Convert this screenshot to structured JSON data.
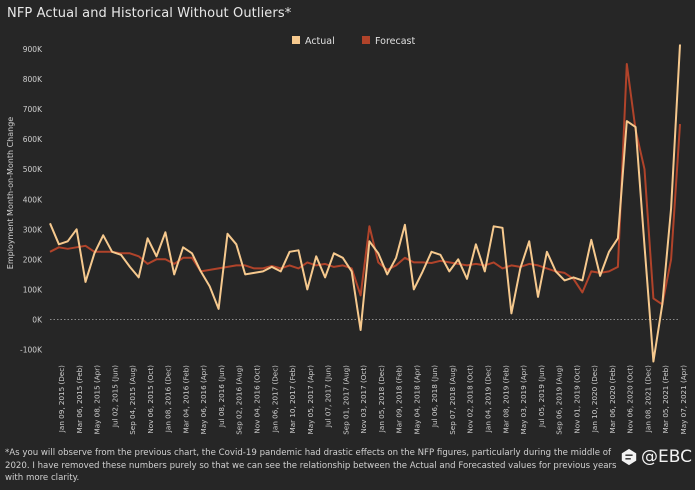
{
  "chart_data": {
    "type": "line",
    "title": "NFP Actual and Historical Without Outliers*",
    "ylabel": "Employment Month-on-Month Change",
    "xlabel": "",
    "ylim": [
      -135000,
      950000
    ],
    "y_ticks": [
      -100000,
      0,
      100000,
      200000,
      300000,
      400000,
      500000,
      600000,
      700000,
      800000,
      900000
    ],
    "y_tick_labels": [
      "-100K",
      "0K",
      "100K",
      "200K",
      "300K",
      "400K",
      "500K",
      "600K",
      "700K",
      "800K",
      "900K"
    ],
    "x_tick_labels": [
      "Jan 09, 2015 (Dec)",
      "Mar 06, 2015 (Feb)",
      "May 08, 2015 (Apr)",
      "Jul 02, 2015 (Jun)",
      "Sep 04, 2015 (Aug)",
      "Nov 06, 2015 (Oct)",
      "Jan 08, 2016 (Dec)",
      "Mar 04, 2016 (Feb)",
      "May 06, 2016 (Apr)",
      "Jul 08, 2016 (Jun)",
      "Sep 02, 2016 (Aug)",
      "Nov 04, 2016 (Oct)",
      "Jan 06, 2017 (Dec)",
      "Mar 10, 2017 (Feb)",
      "May 05, 2017 (Apr)",
      "Jul 07, 2017 (Jun)",
      "Sep 01, 2017 (Aug)",
      "Nov 03, 2017 (Oct)",
      "Jan 05, 2018 (Dec)",
      "Mar 09, 2018 (Feb)",
      "May 04, 2018 (Apr)",
      "Jul 06, 2018 (Jun)",
      "Sep 07, 2018 (Aug)",
      "Nov 02, 2018 (Oct)",
      "Jan 04, 2019 (Dec)",
      "Mar 08, 2019 (Feb)",
      "May 03, 2019 (Apr)",
      "Jul 05, 2019 (Jun)",
      "Sep 06, 2019 (Aug)",
      "Nov 01, 2019 (Oct)",
      "Jan 10, 2020 (Dec)",
      "Mar 06, 2020 (Feb)",
      "Nov 06, 2020 (Oct)",
      "Jan 08, 2021 (Dec)",
      "Mar 05, 2021 (Feb)",
      "May 07, 2021 (Apr)"
    ],
    "zero_line": "dotted",
    "grid": false,
    "legend_position": "top-center",
    "series": [
      {
        "name": "Actual",
        "color": "#f6c98e",
        "values": [
          320000,
          250000,
          260000,
          300000,
          125000,
          220000,
          280000,
          225000,
          215000,
          175000,
          140000,
          270000,
          210000,
          290000,
          150000,
          240000,
          220000,
          160000,
          110000,
          35000,
          285000,
          250000,
          150000,
          155000,
          160000,
          175000,
          160000,
          225000,
          230000,
          100000,
          210000,
          140000,
          220000,
          205000,
          160000,
          -35000,
          260000,
          220000,
          150000,
          205000,
          315000,
          100000,
          160000,
          225000,
          215000,
          160000,
          200000,
          135000,
          250000,
          160000,
          310000,
          305000,
          20000,
          170000,
          260000,
          75000,
          225000,
          160000,
          130000,
          140000,
          130000,
          265000,
          145000,
          225000,
          270000,
          660000,
          640000,
          245000,
          -140000,
          50000,
          370000,
          915000
        ]
      },
      {
        "name": "Forecast",
        "color": "#b0432a",
        "values": [
          225000,
          240000,
          235000,
          240000,
          245000,
          225000,
          225000,
          225000,
          220000,
          220000,
          210000,
          185000,
          200000,
          200000,
          185000,
          205000,
          205000,
          160000,
          165000,
          170000,
          175000,
          180000,
          180000,
          170000,
          170000,
          178000,
          170000,
          180000,
          170000,
          190000,
          180000,
          185000,
          175000,
          180000,
          170000,
          80000,
          310000,
          190000,
          165000,
          180000,
          205000,
          190000,
          190000,
          188000,
          195000,
          190000,
          185000,
          180000,
          185000,
          180000,
          190000,
          170000,
          180000,
          175000,
          185000,
          180000,
          170000,
          160000,
          155000,
          135000,
          90000,
          160000,
          155000,
          160000,
          175000,
          850000,
          630000,
          500000,
          70000,
          50000,
          200000,
          650000
        ]
      }
    ]
  },
  "footnote": "*As you will observe from the previous chart, the Covid-19 pandemic had drastic effects on the NFP figures, particularly during the middle of 2020. I have removed these numbers purely so that we can see the relationship between the Actual and Forecasted values for previous years with more clarity.",
  "brand": {
    "text": "@EBC"
  }
}
